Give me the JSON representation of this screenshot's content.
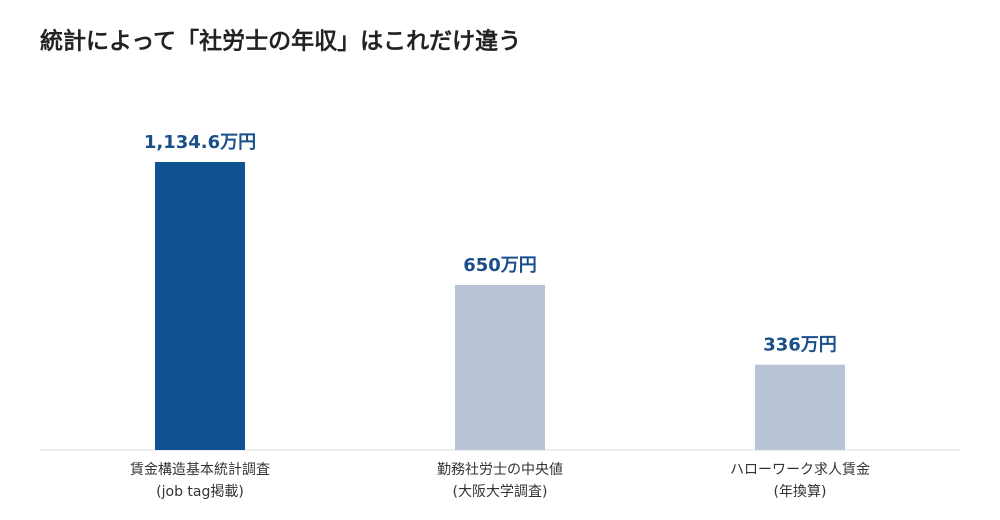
{
  "chart_data": {
    "type": "bar",
    "title": "統計によって「社労士の年収」はこれだけ違う",
    "categories": [
      [
        "賃金構造基本統計調査",
        "(job tag掲載)"
      ],
      [
        "勤務社労士の中央値",
        "(大阪大学調査)"
      ],
      [
        "ハローワーク求人賃金",
        "(年換算)"
      ]
    ],
    "values": [
      1134.6,
      650,
      336
    ],
    "value_labels": [
      "1,134.6万円",
      "650万円",
      "336万円"
    ],
    "colors": [
      "#0f5191",
      "#b8c4d6",
      "#b8c4d6"
    ]
  }
}
